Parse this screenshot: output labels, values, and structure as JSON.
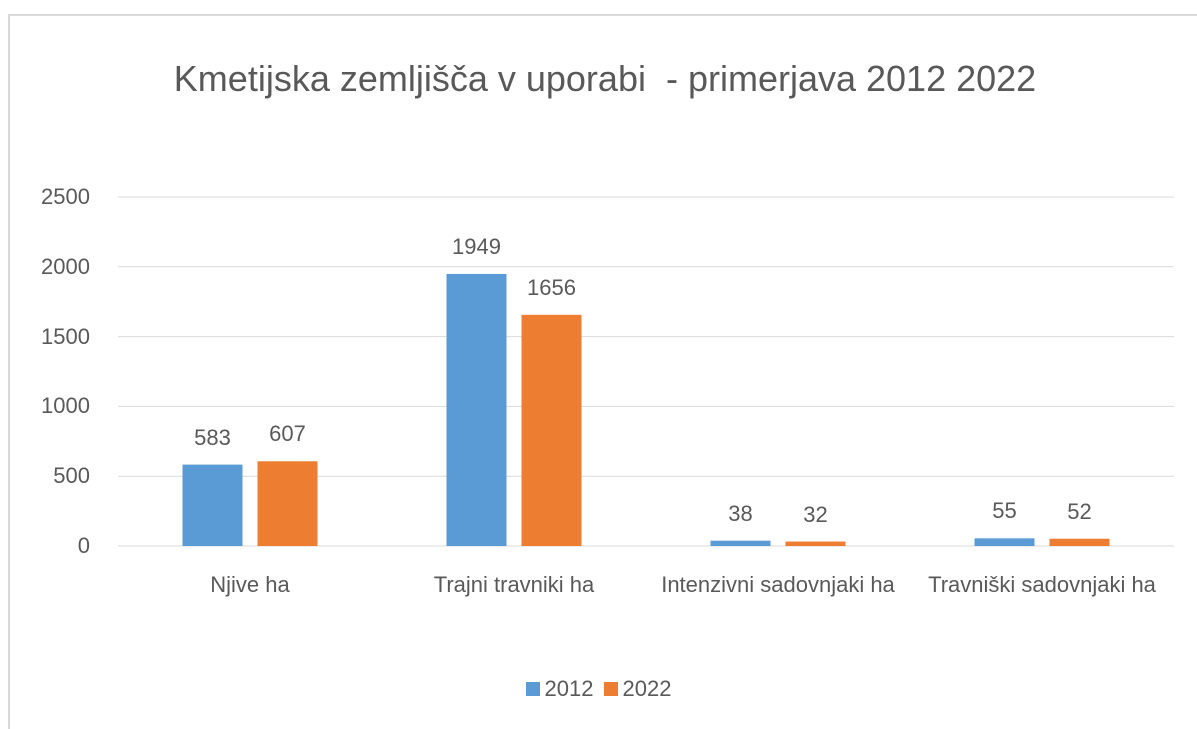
{
  "chart_data": {
    "type": "bar",
    "title": "Kmetijska zemljišča v uporabi  - primerjava 2012 2022",
    "categories": [
      "Njive ha",
      "Trajni travniki ha",
      "Intenzivni sadovnjaki ha",
      "Travniški sadovnjaki ha"
    ],
    "series": [
      {
        "name": "2012",
        "color": "#5b9bd5",
        "values": [
          583,
          1949,
          38,
          55
        ]
      },
      {
        "name": "2022",
        "color": "#ed7d31",
        "values": [
          607,
          1656,
          32,
          52
        ]
      }
    ],
    "ylim": [
      0,
      2500
    ],
    "yticks": [
      0,
      500,
      1000,
      1500,
      2000,
      2500
    ],
    "grid": true,
    "legend": "bottom"
  }
}
